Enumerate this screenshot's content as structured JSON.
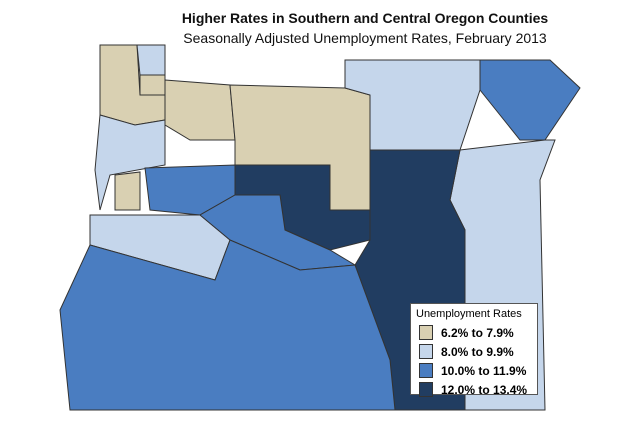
{
  "title": "Higher Rates in Southern and Central Oregon Counties",
  "subtitle": "Seasonally Adjusted Unemployment Rates, February 2013",
  "legend": {
    "title": "Unemployment Rates",
    "items": [
      {
        "label": "6.2% to 7.9%",
        "color": "#d9d0b2"
      },
      {
        "label": "8.0% to 9.9%",
        "color": "#c5d6eb"
      },
      {
        "label": "10.0% to 11.9%",
        "color": "#4a7dc1"
      },
      {
        "label": "12.0% to 13.4%",
        "color": "#213d61"
      }
    ]
  }
}
